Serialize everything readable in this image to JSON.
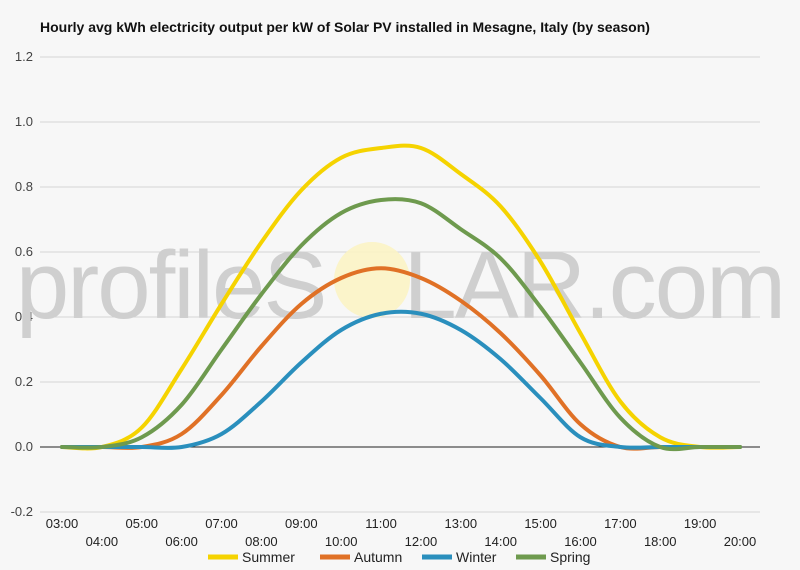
{
  "title": "Hourly avg kWh electricity output per kW of Solar PV installed in Mesagne, Italy (by season)",
  "watermark": {
    "left": "profileS",
    "right": "LAR.com"
  },
  "chart_data": {
    "type": "line",
    "title": "Hourly avg kWh electricity output per kW of Solar PV installed in Mesagne, Italy (by season)",
    "xlabel": "",
    "ylabel": "",
    "categories": [
      "03:00",
      "04:00",
      "05:00",
      "06:00",
      "07:00",
      "08:00",
      "09:00",
      "10:00",
      "11:00",
      "12:00",
      "13:00",
      "14:00",
      "15:00",
      "16:00",
      "17:00",
      "18:00",
      "19:00",
      "20:00"
    ],
    "ylim": [
      -0.2,
      1.2
    ],
    "yticks": [
      -0.2,
      0.0,
      0.2,
      0.4,
      0.6,
      0.8,
      1.0,
      1.2
    ],
    "yticklabels": [
      "-0.2",
      "0.0",
      "0.2",
      "0.4",
      "0.6",
      "0.8",
      "1.0",
      "1.2"
    ],
    "grid": true,
    "legend_position": "bottom",
    "series": [
      {
        "name": "Summer",
        "color": "#f5d300",
        "values": [
          0.0,
          0.0,
          0.06,
          0.24,
          0.44,
          0.63,
          0.79,
          0.89,
          0.92,
          0.92,
          0.84,
          0.74,
          0.57,
          0.35,
          0.14,
          0.03,
          0.0,
          0.0
        ]
      },
      {
        "name": "Autumn",
        "color": "#e07126",
        "values": [
          0.0,
          0.0,
          0.0,
          0.04,
          0.16,
          0.31,
          0.44,
          0.52,
          0.55,
          0.52,
          0.45,
          0.35,
          0.22,
          0.07,
          0.0,
          0.0,
          0.0,
          0.0
        ]
      },
      {
        "name": "Winter",
        "color": "#2a8fbd",
        "values": [
          0.0,
          0.0,
          0.0,
          0.0,
          0.04,
          0.14,
          0.26,
          0.36,
          0.41,
          0.41,
          0.36,
          0.27,
          0.15,
          0.03,
          0.0,
          0.0,
          0.0,
          0.0
        ]
      },
      {
        "name": "Spring",
        "color": "#6e9a4e",
        "values": [
          0.0,
          0.0,
          0.03,
          0.13,
          0.3,
          0.47,
          0.62,
          0.72,
          0.76,
          0.75,
          0.67,
          0.58,
          0.43,
          0.26,
          0.09,
          0.0,
          0.0,
          0.0
        ]
      }
    ]
  }
}
